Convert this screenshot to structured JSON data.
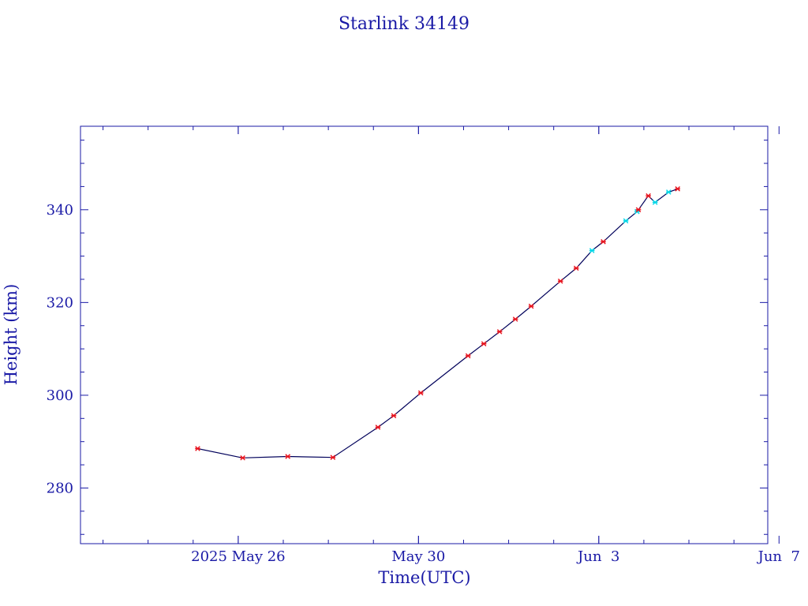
{
  "chart_data": {
    "type": "line",
    "title": "Starlink 34149",
    "xlabel": "Time(UTC)",
    "ylabel": "Height (km)",
    "x_start": "2025-05-23",
    "xlim_days": [
      -0.5,
      14.75
    ],
    "ylim": [
      268,
      358
    ],
    "x_ticks": [
      {
        "day": 3,
        "label": "2025 May 26"
      },
      {
        "day": 7,
        "label": "May 30"
      },
      {
        "day": 11,
        "label": "Jun  3"
      },
      {
        "day": 15,
        "label": "Jun  7"
      }
    ],
    "y_ticks": [
      280,
      300,
      320,
      340
    ],
    "grid": false,
    "colors": {
      "axis": "#1a1aa6",
      "line": "#00005a",
      "marker_red": "#e8121c",
      "marker_cyan": "#00d8e8"
    },
    "series": [
      {
        "points": [
          {
            "x": 2.1,
            "y": 288.5,
            "c": "red"
          },
          {
            "x": 3.1,
            "y": 286.5,
            "c": "red"
          },
          {
            "x": 4.1,
            "y": 286.8,
            "c": "red"
          },
          {
            "x": 5.1,
            "y": 286.6,
            "c": "red"
          },
          {
            "x": 6.1,
            "y": 293.1,
            "c": "red"
          },
          {
            "x": 6.45,
            "y": 295.6,
            "c": "red"
          },
          {
            "x": 7.05,
            "y": 300.5,
            "c": "red"
          },
          {
            "x": 8.1,
            "y": 308.5,
            "c": "red"
          },
          {
            "x": 8.45,
            "y": 311.1,
            "c": "red"
          },
          {
            "x": 8.8,
            "y": 313.7,
            "c": "red"
          },
          {
            "x": 9.15,
            "y": 316.4,
            "c": "red"
          },
          {
            "x": 9.5,
            "y": 319.2,
            "c": "red"
          },
          {
            "x": 10.15,
            "y": 324.6,
            "c": "red"
          },
          {
            "x": 10.5,
            "y": 327.4,
            "c": "red"
          },
          {
            "x": 10.85,
            "y": 331.2,
            "c": "cyan"
          },
          {
            "x": 11.1,
            "y": 333.1,
            "c": "red"
          },
          {
            "x": 11.6,
            "y": 337.6,
            "c": "cyan"
          },
          {
            "x": 11.85,
            "y": 339.6,
            "c": "cyan"
          },
          {
            "x": 11.88,
            "y": 340.0,
            "c": "red"
          },
          {
            "x": 12.1,
            "y": 343.0,
            "c": "red"
          },
          {
            "x": 12.25,
            "y": 341.6,
            "c": "cyan"
          },
          {
            "x": 12.55,
            "y": 343.8,
            "c": "cyan"
          },
          {
            "x": 12.75,
            "y": 344.5,
            "c": "red"
          }
        ]
      }
    ]
  }
}
